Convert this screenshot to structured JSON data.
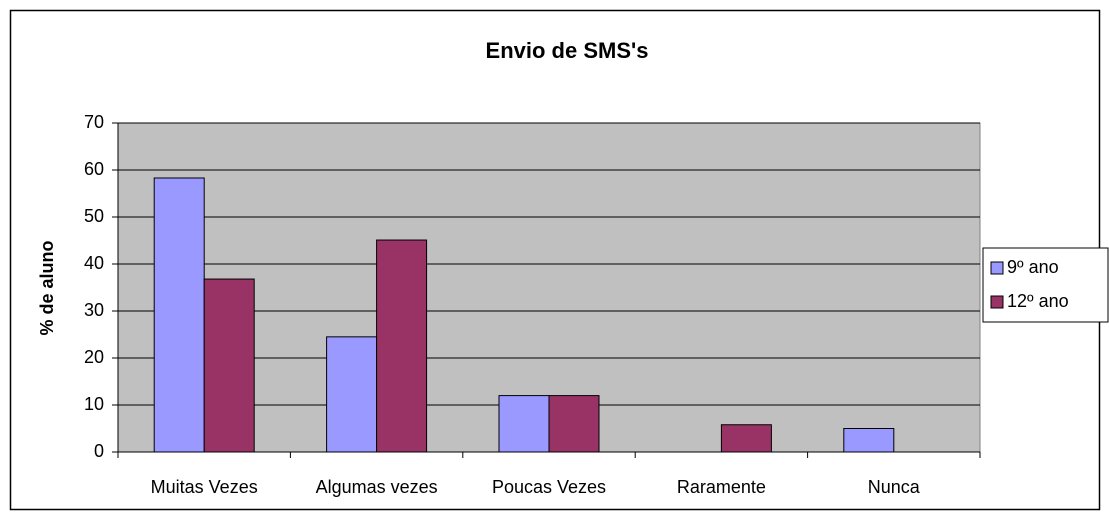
{
  "chart_data": {
    "type": "bar",
    "title": "Envio de SMS's",
    "y_label": "% de aluno",
    "categories": [
      "Muitas Vezes",
      "Algumas vezes",
      "Poucas Vezes",
      "Raramente",
      "Nunca"
    ],
    "series": [
      {
        "name": "9º ano",
        "color": "#9999ff",
        "values": [
          58.3,
          24.5,
          12,
          0,
          5
        ]
      },
      {
        "name": "12º ano",
        "color": "#993366",
        "values": [
          36.8,
          45.1,
          12,
          5.8,
          0
        ]
      }
    ],
    "ylim": [
      0,
      70
    ],
    "yticks": [
      0,
      10,
      20,
      30,
      40,
      50,
      60,
      70
    ],
    "grid": true,
    "legend": "right"
  }
}
